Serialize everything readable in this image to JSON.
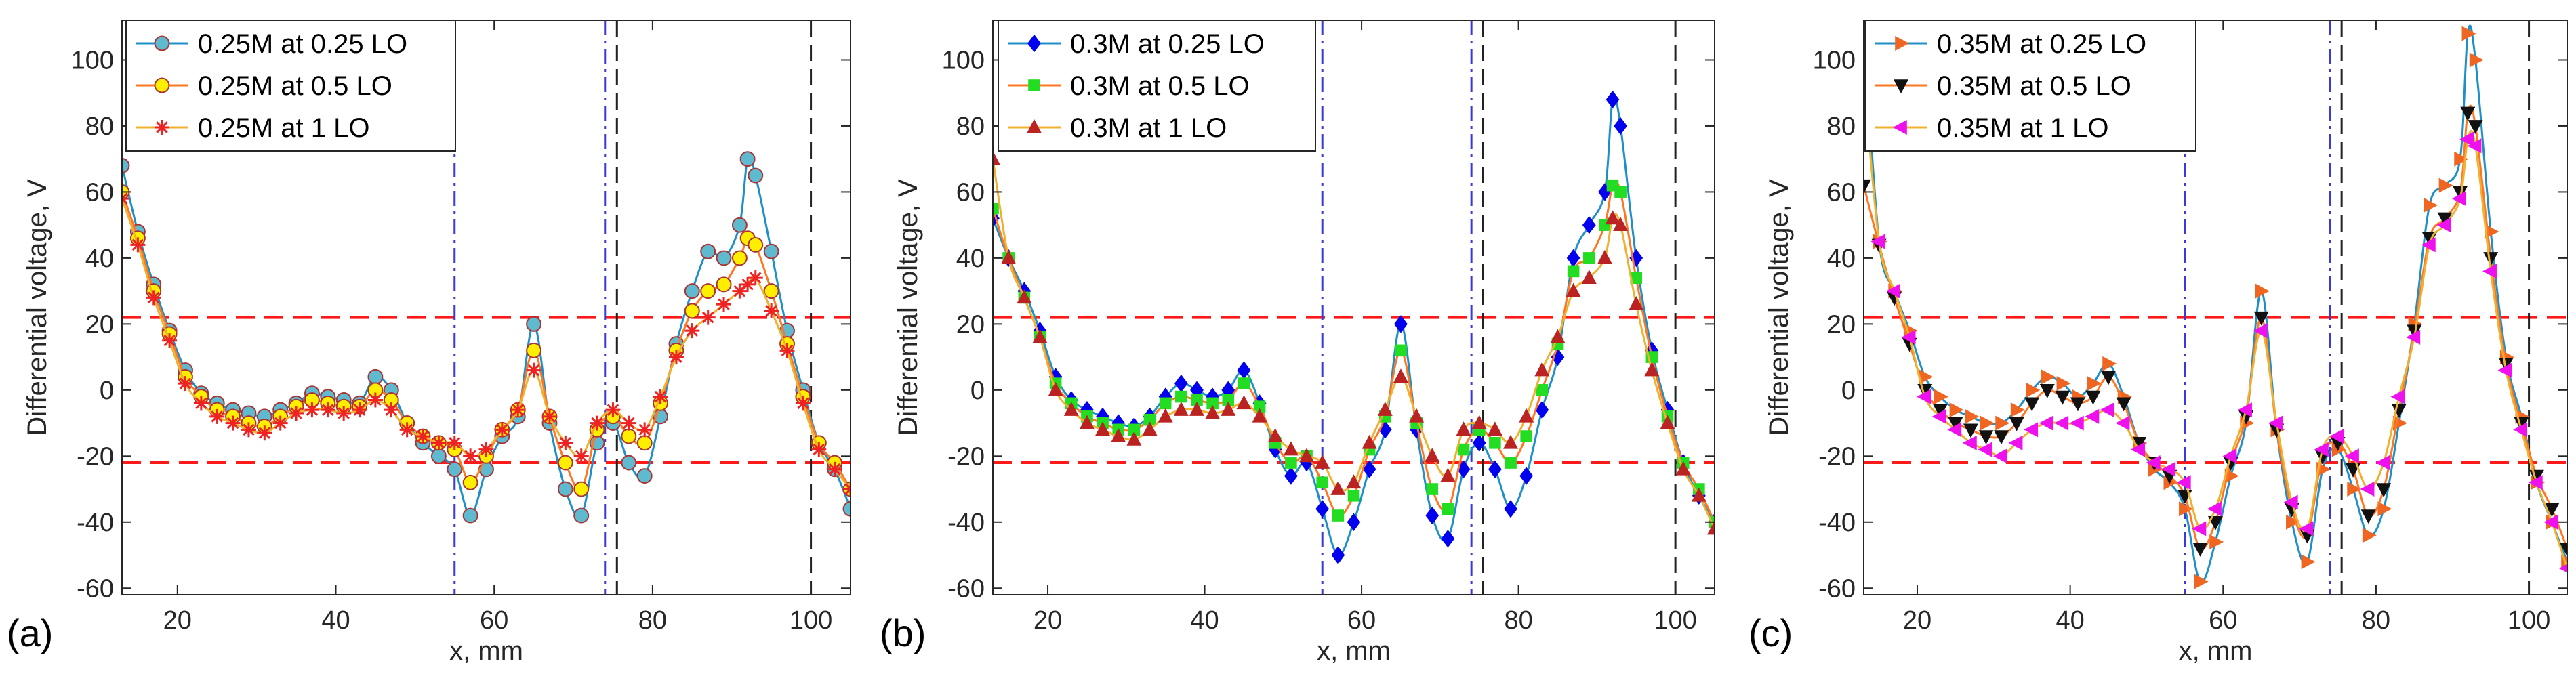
{
  "figure": {
    "panel_letters": [
      "(a)",
      "(b)",
      "(c)"
    ]
  },
  "colors": {
    "threshold": "#ff1a1a",
    "boundary_blue": "#3a3ad6",
    "boundary_black": "#222222",
    "axis": "#262626"
  },
  "chart_data": [
    {
      "type": "line",
      "panel": "(a)",
      "xlabel": "x, mm",
      "ylabel": "Differential voltage, V",
      "xlim": [
        13,
        105
      ],
      "ylim": [
        -62,
        112
      ],
      "xticks": [
        20,
        40,
        60,
        80,
        100
      ],
      "yticks": [
        -60,
        -40,
        -20,
        0,
        20,
        40,
        60,
        80,
        100
      ],
      "thresholds": [
        22,
        -22
      ],
      "boundaries_blue": [
        55,
        74
      ],
      "boundaries_black": [
        75.5,
        100
      ],
      "series": [
        {
          "name": "0.25M at 0.25 LO",
          "color": "#1f8fc8",
          "marker": "circle",
          "marker_fill": "#5fb9cf",
          "x": [
            13,
            15,
            17,
            19,
            21,
            23,
            25,
            27,
            29,
            31,
            33,
            35,
            37,
            39,
            41,
            43,
            45,
            47,
            49,
            51,
            53,
            55,
            57,
            59,
            61,
            63,
            65,
            67,
            69,
            71,
            73,
            75,
            77,
            79,
            81,
            83,
            85,
            87,
            89,
            91,
            92,
            93,
            95,
            97,
            99,
            101,
            103,
            105
          ],
          "y": [
            68,
            48,
            32,
            18,
            6,
            -1,
            -4,
            -6,
            -7,
            -8,
            -6,
            -4,
            -1,
            -2,
            -3,
            -4,
            4,
            0,
            -10,
            -16,
            -20,
            -24,
            -38,
            -24,
            -14,
            -8,
            20,
            -10,
            -30,
            -38,
            -16,
            -10,
            -22,
            -26,
            -8,
            14,
            30,
            42,
            40,
            50,
            70,
            65,
            42,
            18,
            0,
            -16,
            -24,
            -36
          ]
        },
        {
          "name": "0.25M at 0.5 LO",
          "color": "#ff7722",
          "marker": "circle",
          "marker_fill": "#ffee00",
          "x": [
            13,
            15,
            17,
            19,
            21,
            23,
            25,
            27,
            29,
            31,
            33,
            35,
            37,
            39,
            41,
            43,
            45,
            47,
            49,
            51,
            53,
            55,
            57,
            59,
            61,
            63,
            65,
            67,
            69,
            71,
            73,
            75,
            77,
            79,
            81,
            83,
            85,
            87,
            89,
            91,
            92,
            93,
            95,
            97,
            99,
            101,
            103,
            105
          ],
          "y": [
            60,
            46,
            30,
            17,
            4,
            -2,
            -6,
            -8,
            -10,
            -11,
            -8,
            -5,
            -3,
            -4,
            -5,
            -5,
            0,
            -3,
            -10,
            -14,
            -16,
            -18,
            -28,
            -20,
            -12,
            -6,
            12,
            -8,
            -22,
            -30,
            -12,
            -8,
            -14,
            -16,
            -4,
            12,
            24,
            30,
            32,
            40,
            46,
            44,
            30,
            14,
            -2,
            -16,
            -22,
            -30
          ]
        },
        {
          "name": "0.25M at 1 LO",
          "color": "#f0b030",
          "marker": "asterisk",
          "marker_fill": "#ee2222",
          "x": [
            13,
            15,
            17,
            19,
            21,
            23,
            25,
            27,
            29,
            31,
            33,
            35,
            37,
            39,
            41,
            43,
            45,
            47,
            49,
            51,
            53,
            55,
            57,
            59,
            61,
            63,
            65,
            67,
            69,
            71,
            73,
            75,
            77,
            79,
            81,
            83,
            85,
            87,
            89,
            91,
            92,
            93,
            95,
            97,
            99,
            101,
            103,
            105
          ],
          "y": [
            58,
            44,
            28,
            15,
            2,
            -4,
            -8,
            -10,
            -12,
            -13,
            -10,
            -7,
            -6,
            -6,
            -7,
            -6,
            -3,
            -6,
            -12,
            -14,
            -16,
            -16,
            -20,
            -18,
            -12,
            -6,
            6,
            -8,
            -16,
            -20,
            -10,
            -6,
            -10,
            -12,
            -2,
            10,
            18,
            22,
            26,
            30,
            32,
            34,
            24,
            12,
            -4,
            -18,
            -24,
            -30
          ]
        }
      ]
    },
    {
      "type": "line",
      "panel": "(b)",
      "xlabel": "x, mm",
      "ylabel": "Differential voltage, V",
      "xlim": [
        13,
        105
      ],
      "ylim": [
        -62,
        112
      ],
      "xticks": [
        20,
        40,
        60,
        80,
        100
      ],
      "yticks": [
        -60,
        -40,
        -20,
        0,
        20,
        40,
        60,
        80,
        100
      ],
      "thresholds": [
        22,
        -22
      ],
      "boundaries_blue": [
        55,
        74
      ],
      "boundaries_black": [
        75.5,
        100
      ],
      "series": [
        {
          "name": "0.3M at 0.25 LO",
          "color": "#1f8fc8",
          "marker": "diamond",
          "marker_fill": "#0000ee",
          "x": [
            13,
            15,
            17,
            19,
            21,
            23,
            25,
            27,
            29,
            31,
            33,
            35,
            37,
            39,
            41,
            43,
            45,
            47,
            49,
            51,
            53,
            55,
            57,
            59,
            61,
            63,
            65,
            67,
            69,
            71,
            73,
            75,
            77,
            79,
            81,
            83,
            85,
            87,
            89,
            91,
            92,
            93,
            95,
            97,
            99,
            101,
            103,
            105
          ],
          "y": [
            52,
            40,
            30,
            18,
            4,
            -3,
            -6,
            -8,
            -10,
            -11,
            -8,
            -2,
            2,
            0,
            -2,
            0,
            6,
            -4,
            -18,
            -26,
            -22,
            -36,
            -50,
            -40,
            -24,
            -12,
            20,
            -12,
            -38,
            -45,
            -24,
            -16,
            -24,
            -36,
            -26,
            -6,
            10,
            40,
            50,
            60,
            88,
            80,
            40,
            12,
            -6,
            -22,
            -32,
            -40
          ]
        },
        {
          "name": "0.3M at 0.5 LO",
          "color": "#ff7722",
          "marker": "square",
          "marker_fill": "#22dd22",
          "x": [
            13,
            15,
            17,
            19,
            21,
            23,
            25,
            27,
            29,
            31,
            33,
            35,
            37,
            39,
            41,
            43,
            45,
            47,
            49,
            51,
            53,
            55,
            57,
            59,
            61,
            63,
            65,
            67,
            69,
            71,
            73,
            75,
            77,
            79,
            81,
            83,
            85,
            87,
            89,
            91,
            92,
            93,
            95,
            97,
            99,
            101,
            103,
            105
          ],
          "y": [
            55,
            40,
            28,
            16,
            2,
            -4,
            -8,
            -10,
            -12,
            -12,
            -9,
            -4,
            -2,
            -3,
            -4,
            -3,
            2,
            -5,
            -16,
            -22,
            -20,
            -28,
            -38,
            -32,
            -18,
            -8,
            12,
            -10,
            -30,
            -36,
            -18,
            -12,
            -16,
            -22,
            -14,
            0,
            14,
            36,
            40,
            50,
            62,
            60,
            34,
            10,
            -8,
            -22,
            -30,
            -40
          ]
        },
        {
          "name": "0.3M at 1 LO",
          "color": "#f0b030",
          "marker": "triangle-up",
          "marker_fill": "#bb2222",
          "x": [
            13,
            15,
            17,
            19,
            21,
            23,
            25,
            27,
            29,
            31,
            33,
            35,
            37,
            39,
            41,
            43,
            45,
            47,
            49,
            51,
            53,
            55,
            57,
            59,
            61,
            63,
            65,
            67,
            69,
            71,
            73,
            75,
            77,
            79,
            81,
            83,
            85,
            87,
            89,
            91,
            92,
            93,
            95,
            97,
            99,
            101,
            103,
            105
          ],
          "y": [
            70,
            40,
            28,
            16,
            0,
            -6,
            -10,
            -12,
            -14,
            -15,
            -12,
            -8,
            -6,
            -6,
            -7,
            -6,
            -4,
            -8,
            -14,
            -18,
            -20,
            -22,
            -30,
            -28,
            -16,
            -6,
            4,
            -8,
            -20,
            -26,
            -12,
            -10,
            -12,
            -16,
            -8,
            6,
            16,
            30,
            34,
            40,
            52,
            50,
            26,
            6,
            -10,
            -24,
            -32,
            -42
          ]
        }
      ]
    },
    {
      "type": "line",
      "panel": "(c)",
      "xlabel": "x, mm",
      "ylabel": "Differential voltage, V",
      "xlim": [
        13,
        105
      ],
      "ylim": [
        -62,
        112
      ],
      "xticks": [
        20,
        40,
        60,
        80,
        100
      ],
      "yticks": [
        -60,
        -40,
        -20,
        0,
        20,
        40,
        60,
        80,
        100
      ],
      "thresholds": [
        22,
        -22
      ],
      "boundaries_blue": [
        55,
        74
      ],
      "boundaries_black": [
        75.5,
        100
      ],
      "series": [
        {
          "name": "0.35M at 0.25 LO",
          "color": "#1f8fc8",
          "marker": "triangle-right",
          "marker_fill": "#ee6622",
          "x": [
            13,
            15,
            17,
            19,
            21,
            23,
            25,
            27,
            29,
            31,
            33,
            35,
            37,
            39,
            41,
            43,
            45,
            47,
            49,
            51,
            53,
            55,
            57,
            59,
            61,
            63,
            65,
            67,
            69,
            71,
            73,
            75,
            77,
            79,
            81,
            83,
            85,
            87,
            89,
            91,
            92,
            93,
            95,
            97,
            99,
            101,
            103,
            105
          ],
          "y": [
            110,
            45,
            30,
            18,
            4,
            -2,
            -6,
            -8,
            -10,
            -10,
            -6,
            0,
            4,
            2,
            -2,
            2,
            8,
            -2,
            -16,
            -24,
            -28,
            -36,
            -58,
            -46,
            -26,
            -10,
            30,
            -12,
            -40,
            -52,
            -24,
            -18,
            -30,
            -44,
            -36,
            -10,
            20,
            56,
            62,
            70,
            108,
            100,
            48,
            10,
            -8,
            -28,
            -40,
            -52
          ]
        },
        {
          "name": "0.35M at 0.5 LO",
          "color": "#ff7722",
          "marker": "triangle-down",
          "marker_fill": "#111111",
          "x": [
            13,
            15,
            17,
            19,
            21,
            23,
            25,
            27,
            29,
            31,
            33,
            35,
            37,
            39,
            41,
            43,
            45,
            47,
            49,
            51,
            53,
            55,
            57,
            59,
            61,
            63,
            65,
            67,
            69,
            71,
            73,
            75,
            77,
            79,
            81,
            83,
            85,
            87,
            89,
            91,
            92,
            93,
            95,
            97,
            99,
            101,
            103,
            105
          ],
          "y": [
            62,
            44,
            28,
            14,
            0,
            -6,
            -10,
            -12,
            -14,
            -14,
            -10,
            -4,
            0,
            -2,
            -4,
            -2,
            4,
            -4,
            -16,
            -22,
            -26,
            -32,
            -48,
            -40,
            -22,
            -8,
            22,
            -12,
            -36,
            -44,
            -20,
            -16,
            -24,
            -38,
            -30,
            -6,
            18,
            46,
            52,
            60,
            84,
            80,
            40,
            8,
            -10,
            -26,
            -36,
            -48
          ]
        },
        {
          "name": "0.35M at 1 LO",
          "color": "#f0b030",
          "marker": "triangle-left",
          "marker_fill": "#ee11ee",
          "x": [
            13,
            15,
            17,
            19,
            21,
            23,
            25,
            27,
            29,
            31,
            33,
            35,
            37,
            39,
            41,
            43,
            45,
            47,
            49,
            51,
            53,
            55,
            57,
            59,
            61,
            63,
            65,
            67,
            69,
            71,
            73,
            75,
            77,
            79,
            81,
            83,
            85,
            87,
            89,
            91,
            92,
            93,
            95,
            97,
            99,
            101,
            103,
            105
          ],
          "y": [
            95,
            45,
            30,
            16,
            -2,
            -8,
            -12,
            -16,
            -18,
            -20,
            -16,
            -12,
            -10,
            -10,
            -10,
            -8,
            -6,
            -10,
            -18,
            -22,
            -24,
            -28,
            -42,
            -36,
            -20,
            -6,
            18,
            -10,
            -34,
            -42,
            -18,
            -14,
            -20,
            -30,
            -22,
            -2,
            16,
            44,
            50,
            58,
            76,
            74,
            36,
            6,
            -12,
            -28,
            -40,
            -54
          ]
        }
      ]
    }
  ]
}
